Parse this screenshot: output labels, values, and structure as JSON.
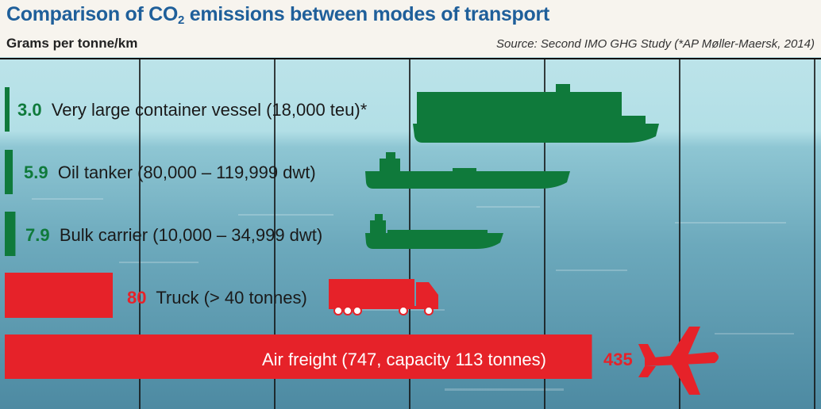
{
  "title_main": "Comparison of CO",
  "title_sub": "2",
  "title_rest": " emissions between modes of transport",
  "units_label": "Grams per tonne/km",
  "source": "Source: Second IMO GHG Study (*AP Møller-Maersk, 2014)",
  "colors": {
    "title": "#1f5f9a",
    "ship_green": "#0f7a3b",
    "air_road_red": "#e62229"
  },
  "icons": [
    "container-ship-icon",
    "oil-tanker-icon",
    "bulk-carrier-icon",
    "truck-icon",
    "airplane-icon"
  ],
  "chart_data": {
    "type": "bar",
    "orientation": "horizontal",
    "unit": "Grams per tonne/km",
    "grid": true,
    "categories": [
      "Very large container vessel (18,000 teu)*",
      "Oil tanker (80,000 – 119,999 dwt)",
      "Bulk carrier (10,000 – 34,999 dwt)",
      "Truck (> 40 tonnes)",
      "Air freight (747, capacity 113 tonnes)"
    ],
    "value_labels": [
      "3.0",
      "5.9",
      "7.9",
      "80",
      "435"
    ],
    "values": [
      3.0,
      5.9,
      7.9,
      80,
      435
    ],
    "colors": [
      "#0f7a3b",
      "#0f7a3b",
      "#0f7a3b",
      "#e62229",
      "#e62229"
    ],
    "xlim": [
      0,
      500
    ]
  }
}
